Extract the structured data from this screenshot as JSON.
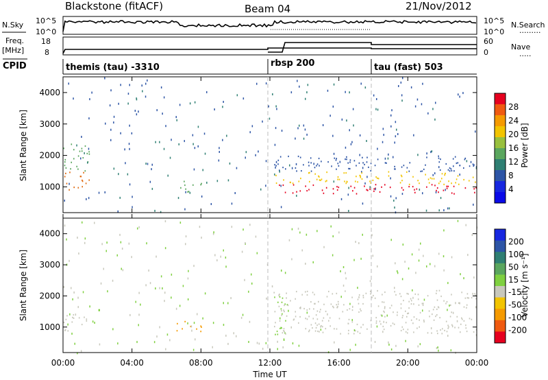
{
  "header": {
    "station": "Blackstone (fitACF)",
    "beam": "Beam 04",
    "date": "21/Nov/2012"
  },
  "summary_panels": {
    "nsky": {
      "left_label": "N.Sky",
      "left_ticks": [
        "10^5",
        "10^0"
      ],
      "right_ticks": [
        "10^5",
        "10^0"
      ],
      "right_label": "N.Search",
      "right_dots": "........."
    },
    "freq": {
      "left_label_1": "Freq.",
      "left_label_2": "[MHz]",
      "left_ticks": [
        "18",
        "8"
      ],
      "right_ticks": [
        "60",
        "0"
      ],
      "right_label": "Nave",
      "right_dots": "....."
    },
    "cpid": {
      "label": "CPID",
      "modes": [
        {
          "name": "themis (tau) -3310",
          "start_hour": 0
        },
        {
          "name": "rbsp 200",
          "start_hour": 12.0
        },
        {
          "name": "tau (fast) 503",
          "start_hour": 18.0
        }
      ]
    }
  },
  "chart_data": [
    {
      "type": "heatmap",
      "name": "power",
      "ylabel": "Slant Range [km]",
      "xlabel": "",
      "xlim_hours": [
        0,
        24
      ],
      "ylim": [
        180,
        4500
      ],
      "yticks": [
        1000,
        2000,
        3000,
        4000
      ],
      "colorbar": {
        "label": "Power [dB]",
        "ticks": [
          "28",
          "24",
          "20",
          "16",
          "12",
          "8",
          "4"
        ],
        "colors": [
          "#e6001f",
          "#f05a10",
          "#f59a00",
          "#f2c400",
          "#98c03e",
          "#5aa65e",
          "#2f7f73",
          "#2d55a6",
          "#1727e0",
          "#0a0ae8"
        ]
      },
      "regions": [
        {
          "t": [
            0.0,
            1.5
          ],
          "r": [
            900,
            1500
          ],
          "color": "#e06a10"
        },
        {
          "t": [
            0.0,
            1.5
          ],
          "r": [
            1500,
            2400
          ],
          "color": "#5aa65e"
        },
        {
          "t": [
            6.5,
            8.0
          ],
          "r": [
            850,
            1200
          ],
          "color": "#5aa65e"
        },
        {
          "t": [
            12.2,
            24.0
          ],
          "r": [
            800,
            1100
          ],
          "color": "#e6001f"
        },
        {
          "t": [
            12.2,
            24.0
          ],
          "r": [
            1100,
            1500
          ],
          "color": "#f2c400"
        },
        {
          "t": [
            12.2,
            24.0
          ],
          "r": [
            1500,
            2000
          ],
          "color": "#2d55a6"
        }
      ]
    },
    {
      "type": "heatmap",
      "name": "velocity",
      "ylabel": "Slant Range [km]",
      "xlabel": "Time UT",
      "xlim_hours": [
        0,
        24
      ],
      "ylim": [
        180,
        4500
      ],
      "yticks": [
        1000,
        2000,
        3000,
        4000
      ],
      "xticks": [
        "00:00",
        "04:00",
        "08:00",
        "12:00",
        "16:00",
        "20:00",
        "00:00"
      ],
      "colorbar": {
        "label": "Velocity [m s⁻¹]",
        "ticks": [
          "200",
          "100",
          "50",
          "15",
          "-15",
          "-50",
          "-100",
          "-200"
        ],
        "colors": [
          "#1727e0",
          "#2d55a6",
          "#2f7f73",
          "#5aa65e",
          "#7fd040",
          "#c8c8bc",
          "#f2c400",
          "#f59a00",
          "#f05a10",
          "#e6001f"
        ]
      },
      "regions": [
        {
          "t": [
            0.0,
            1.5
          ],
          "r": [
            900,
            1500
          ],
          "color": "#c8c8bc"
        },
        {
          "t": [
            6.5,
            8.0
          ],
          "r": [
            850,
            1200
          ],
          "color": "#f59a00"
        },
        {
          "t": [
            12.2,
            13.0
          ],
          "r": [
            600,
            2000
          ],
          "color": "#7fd040"
        },
        {
          "t": [
            12.2,
            24.0
          ],
          "r": [
            800,
            2200
          ],
          "color": "#c8c8bc"
        }
      ]
    }
  ]
}
